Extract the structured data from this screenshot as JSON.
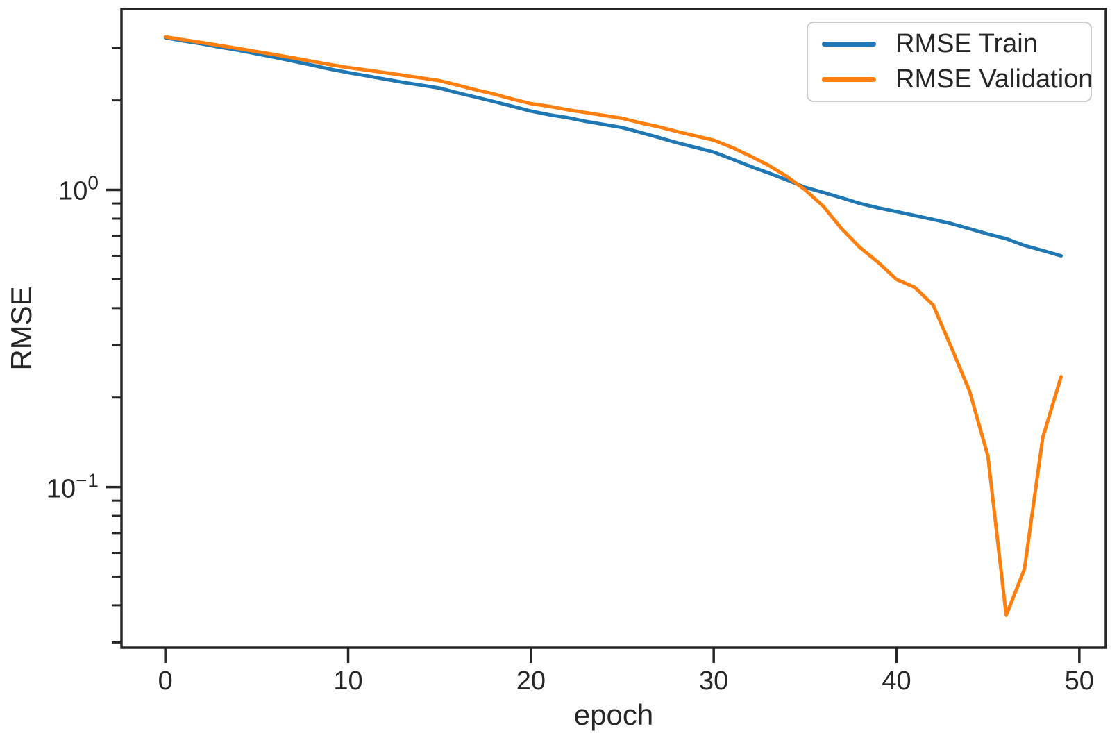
{
  "figure": {
    "background": "#ffffff",
    "text_color": "#262626",
    "axis_color": "#262626"
  },
  "chart_data": {
    "type": "line",
    "title": "",
    "xlabel": "epoch",
    "ylabel": "RMSE",
    "x_scale": "linear",
    "y_scale": "log",
    "grid": false,
    "legend_position": "upper right",
    "xlim": [
      -2.4,
      51.45
    ],
    "ylim": [
      0.0288,
      4.06
    ],
    "x_ticks": [
      0,
      10,
      20,
      30,
      40,
      50
    ],
    "y_major_ticks": [
      {
        "value": 1,
        "label_base": "10",
        "label_exp": "0"
      },
      {
        "value": 0.1,
        "label_base": "10",
        "label_exp": "−1"
      }
    ],
    "y_minor_ticks": [
      3,
      2,
      0.9,
      0.8,
      0.7,
      0.6,
      0.5,
      0.4,
      0.3,
      0.2,
      0.09,
      0.08,
      0.07,
      0.06,
      0.05,
      0.04,
      0.03
    ],
    "x": [
      0,
      1,
      2,
      3,
      4,
      5,
      6,
      7,
      8,
      9,
      10,
      11,
      12,
      13,
      14,
      15,
      16,
      17,
      18,
      19,
      20,
      21,
      22,
      23,
      24,
      25,
      26,
      27,
      28,
      29,
      30,
      31,
      32,
      33,
      34,
      35,
      36,
      37,
      38,
      39,
      40,
      41,
      42,
      43,
      44,
      45,
      46,
      47,
      48,
      49
    ],
    "series": [
      {
        "name": "RMSE Train",
        "color": "#1f77b4",
        "values": [
          3.25,
          3.17,
          3.1,
          3.02,
          2.95,
          2.87,
          2.79,
          2.71,
          2.63,
          2.55,
          2.48,
          2.42,
          2.36,
          2.3,
          2.25,
          2.2,
          2.12,
          2.05,
          1.98,
          1.91,
          1.84,
          1.79,
          1.75,
          1.7,
          1.66,
          1.62,
          1.56,
          1.5,
          1.44,
          1.39,
          1.34,
          1.27,
          1.2,
          1.14,
          1.08,
          1.02,
          0.98,
          0.94,
          0.9,
          0.87,
          0.845,
          0.82,
          0.795,
          0.77,
          0.74,
          0.71,
          0.685,
          0.65,
          0.625,
          0.6
        ]
      },
      {
        "name": "RMSE Validation",
        "color": "#ff7f0e",
        "values": [
          3.27,
          3.2,
          3.13,
          3.06,
          2.99,
          2.92,
          2.85,
          2.78,
          2.71,
          2.64,
          2.58,
          2.53,
          2.48,
          2.43,
          2.38,
          2.33,
          2.25,
          2.17,
          2.1,
          2.02,
          1.95,
          1.91,
          1.86,
          1.82,
          1.78,
          1.74,
          1.68,
          1.63,
          1.57,
          1.52,
          1.47,
          1.39,
          1.3,
          1.21,
          1.11,
          1.0,
          0.88,
          0.74,
          0.64,
          0.57,
          0.5,
          0.47,
          0.41,
          0.295,
          0.21,
          0.127,
          0.037,
          0.053,
          0.147,
          0.235
        ]
      }
    ]
  }
}
